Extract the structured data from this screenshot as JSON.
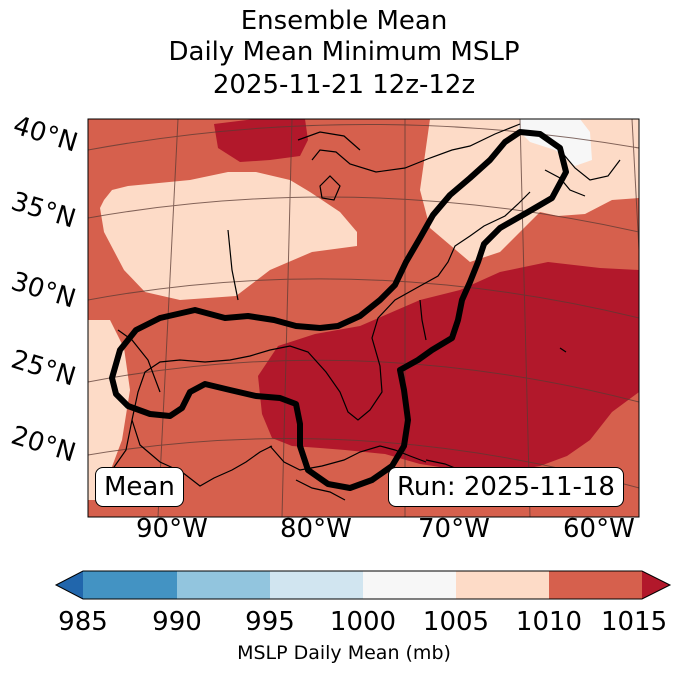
{
  "title": {
    "line1": "Ensemble Mean",
    "line2": "Daily Mean Minimum MSLP",
    "line3": "2025-11-21 12z-12z"
  },
  "map": {
    "lat_labels": [
      "40°N",
      "35°N",
      "30°N",
      "25°N",
      "20°N"
    ],
    "lon_labels": [
      "90°W",
      "80°W",
      "70°W",
      "60°W"
    ],
    "legend_left": "Mean",
    "legend_right": "Run: 2025-11-18"
  },
  "colorbar": {
    "ticks": [
      "985",
      "990",
      "995",
      "1000",
      "1005",
      "1010",
      "1015"
    ],
    "label": "MSLP Daily Mean (mb)",
    "colors": [
      "#2166ac",
      "#4393c3",
      "#92c5de",
      "#d1e5f0",
      "#f7f7f7",
      "#fddbc7",
      "#d6604d",
      "#b2182b"
    ]
  }
}
